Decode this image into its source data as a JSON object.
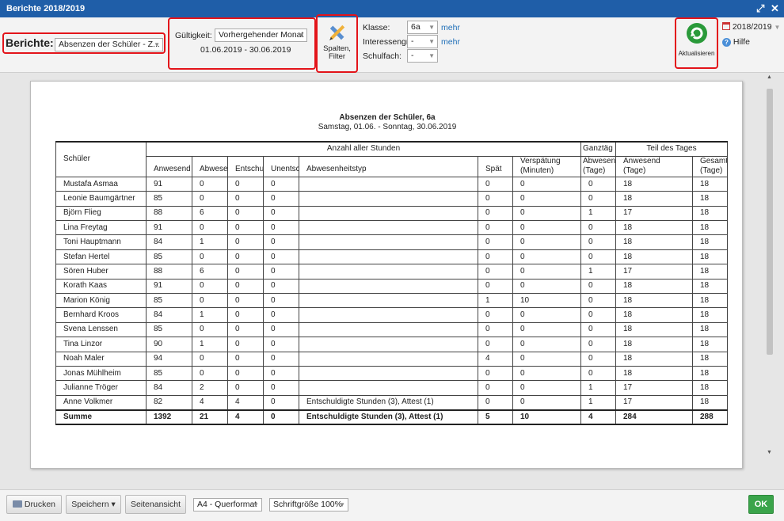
{
  "window": {
    "title": "Berichte 2018/2019"
  },
  "toolbar": {
    "berichte_label": "Berichte:",
    "berichte_value": "Absenzen der Schüler - Z...",
    "gueltigkeit_label": "Gültigkeit:",
    "gueltigkeit_value": "Vorhergehender Monat",
    "date_range": "01.06.2019 - 30.06.2019",
    "spalten_filter_label_1": "Spalten,",
    "spalten_filter_label_2": "Filter",
    "klasse_label": "Klasse:",
    "klasse_value": "6a",
    "interessengruppe_label": "Interessengru",
    "interessengruppe_value": "-",
    "schulfach_label": "Schulfach:",
    "schulfach_value": "-",
    "mehr_1": "mehr",
    "mehr_2": "mehr",
    "aktualisieren_label": "Aktualisieren",
    "school_year": "2018/2019",
    "hilfe_label": "Hilfe"
  },
  "report": {
    "title": "Absenzen der Schüler, 6a",
    "subtitle": "Samstag, 01.06. - Sonntag, 30.06.2019",
    "header": {
      "schueler": "Schüler",
      "anzahl_aller_stunden": "Anzahl aller Stunden",
      "ganztage": "Ganztäg",
      "teil_des_tages": "Teil des Tages",
      "anwesend": "Anwesend",
      "abwesend": "Abwesend",
      "entschuldigt": "Entschuldigt",
      "unentschuldigt": "Unentschuldigt",
      "abwesenheitstyp": "Abwesenheitstyp",
      "spaet": "Spät",
      "verspaetung_1": "Verspätung",
      "verspaetung_2": "(Minuten)",
      "gt_abwesend_1": "Abwesend",
      "gt_abwesend_2": "(Tage)",
      "tt_anwesend_1": "Anwesend",
      "tt_anwesend_2": "(Tage)",
      "tt_gesamt_1": "Gesamt",
      "tt_gesamt_2": "(Tage)"
    },
    "rows": [
      [
        "Mustafa Asmaa",
        "91",
        "0",
        "0",
        "0",
        "",
        "0",
        "0",
        "0",
        "18",
        "18"
      ],
      [
        "Leonie Baumgärtner",
        "85",
        "0",
        "0",
        "0",
        "",
        "0",
        "0",
        "0",
        "18",
        "18"
      ],
      [
        "Björn Flieg",
        "88",
        "6",
        "0",
        "0",
        "",
        "0",
        "0",
        "1",
        "17",
        "18"
      ],
      [
        "Lina Freytag",
        "91",
        "0",
        "0",
        "0",
        "",
        "0",
        "0",
        "0",
        "18",
        "18"
      ],
      [
        "Toni Hauptmann",
        "84",
        "1",
        "0",
        "0",
        "",
        "0",
        "0",
        "0",
        "18",
        "18"
      ],
      [
        "Stefan Hertel",
        "85",
        "0",
        "0",
        "0",
        "",
        "0",
        "0",
        "0",
        "18",
        "18"
      ],
      [
        "Sören Huber",
        "88",
        "6",
        "0",
        "0",
        "",
        "0",
        "0",
        "1",
        "17",
        "18"
      ],
      [
        "Korath Kaas",
        "91",
        "0",
        "0",
        "0",
        "",
        "0",
        "0",
        "0",
        "18",
        "18"
      ],
      [
        "Marion König",
        "85",
        "0",
        "0",
        "0",
        "",
        "1",
        "10",
        "0",
        "18",
        "18"
      ],
      [
        "Bernhard Kroos",
        "84",
        "1",
        "0",
        "0",
        "",
        "0",
        "0",
        "0",
        "18",
        "18"
      ],
      [
        "Svena Lenssen",
        "85",
        "0",
        "0",
        "0",
        "",
        "0",
        "0",
        "0",
        "18",
        "18"
      ],
      [
        "Tina Linzor",
        "90",
        "1",
        "0",
        "0",
        "",
        "0",
        "0",
        "0",
        "18",
        "18"
      ],
      [
        "Noah Maler",
        "94",
        "0",
        "0",
        "0",
        "",
        "4",
        "0",
        "0",
        "18",
        "18"
      ],
      [
        "Jonas Mühlheim",
        "85",
        "0",
        "0",
        "0",
        "",
        "0",
        "0",
        "0",
        "18",
        "18"
      ],
      [
        "Julianne Tröger",
        "84",
        "2",
        "0",
        "0",
        "",
        "0",
        "0",
        "1",
        "17",
        "18"
      ],
      [
        "Anne Volkmer",
        "82",
        "4",
        "4",
        "0",
        "Entschuldigte Stunden (3), Attest (1)",
        "0",
        "0",
        "1",
        "17",
        "18"
      ]
    ],
    "sum": [
      "Summe",
      "1392",
      "21",
      "4",
      "0",
      "Entschuldigte Stunden (3), Attest (1)",
      "5",
      "10",
      "4",
      "284",
      "288"
    ]
  },
  "bottom": {
    "drucken": "Drucken",
    "speichern": "Speichern ▾",
    "seitenansicht": "Seitenansicht",
    "format": "A4 - Querformat",
    "schriftgroesse": "Schriftgröße 100%",
    "ok": "OK"
  },
  "colors": {
    "titlebar": "#1f5ea8",
    "highlight": "#e3141a",
    "ok": "#3aa44a",
    "link": "#1f6fb8"
  },
  "icons": [
    "expand-icon",
    "close-icon",
    "pencil-ruler-icon",
    "refresh-icon",
    "calendar-icon",
    "help-icon",
    "printer-icon"
  ]
}
